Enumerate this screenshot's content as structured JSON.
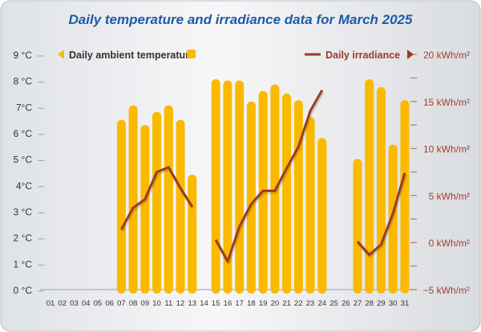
{
  "chart_data": {
    "type": "bar",
    "title": "Daily temperature and irradiance data for March 2025",
    "categories": [
      "01",
      "02",
      "03",
      "04",
      "05",
      "06",
      "07",
      "08",
      "09",
      "10",
      "11",
      "12",
      "13",
      "14",
      "15",
      "16",
      "17",
      "18",
      "19",
      "20",
      "21",
      "22",
      "23",
      "24",
      "25",
      "26",
      "27",
      "28",
      "29",
      "30",
      "31"
    ],
    "series": [
      {
        "name": "Daily ambient temperature",
        "type": "bar",
        "axis": "left",
        "color": "#fbb900",
        "values": [
          null,
          null,
          null,
          null,
          null,
          null,
          6.5,
          7.05,
          6.3,
          6.8,
          7.05,
          6.5,
          4.4,
          null,
          8.05,
          8.0,
          8.0,
          7.2,
          7.6,
          7.85,
          7.5,
          7.25,
          6.6,
          5.8,
          null,
          null,
          5.0,
          8.05,
          7.75,
          5.55,
          7.25
        ]
      },
      {
        "name": "Daily irradiance",
        "type": "line",
        "axis": "right",
        "color": "#9e3a22",
        "values": [
          null,
          null,
          null,
          null,
          null,
          null,
          1.4,
          3.7,
          4.6,
          7.5,
          8.0,
          5.8,
          3.8,
          null,
          0.3,
          -2.0,
          1.7,
          4.1,
          5.5,
          5.5,
          7.9,
          10.2,
          14.0,
          16.2,
          null,
          null,
          0.1,
          -1.3,
          -0.2,
          3.1,
          7.4
        ]
      }
    ],
    "left_axis": {
      "ylim": [
        0,
        9
      ],
      "tick_labels": [
        "0 °C",
        "1 °C",
        "2 °C",
        "3 °C",
        "4°C",
        "5 °C",
        "6 °C",
        "7°C",
        "8 °C",
        "9 °C"
      ]
    },
    "right_axis": {
      "ylim": [
        -5,
        20
      ],
      "tick_values": [
        -5,
        0,
        5,
        10,
        15,
        20
      ],
      "tick_labels": [
        "−5 kWh/m²",
        "0 kWh/m²",
        "5 kWh/m²",
        "10 kWh/m²",
        "15 kWh/m²",
        "20 kWh/m²"
      ]
    },
    "legend": {
      "left": "Daily ambient temperature",
      "right": "Daily irradiance"
    },
    "grid": false
  }
}
